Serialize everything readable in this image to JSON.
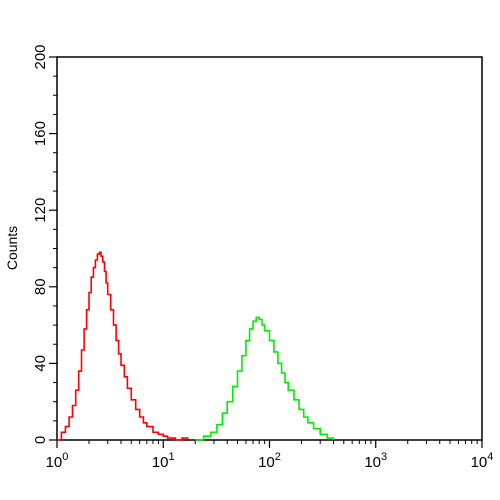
{
  "chart_data": {
    "type": "line",
    "title": "",
    "xlabel": "",
    "ylabel": "Counts",
    "x_scale": "log",
    "xlim": [
      1,
      10000
    ],
    "ylim": [
      0,
      200
    ],
    "grid": false,
    "legend": "none",
    "x_ticks": [
      {
        "value": 1,
        "base": "10",
        "exp": "0"
      },
      {
        "value": 10,
        "base": "10",
        "exp": "1"
      },
      {
        "value": 100,
        "base": "10",
        "exp": "2"
      },
      {
        "value": 1000,
        "base": "10",
        "exp": "3"
      },
      {
        "value": 10000,
        "base": "10",
        "exp": "4"
      }
    ],
    "y_ticks": [
      {
        "value": 0,
        "label": "0"
      },
      {
        "value": 40,
        "label": "40"
      },
      {
        "value": 80,
        "label": "80"
      },
      {
        "value": 120,
        "label": "120"
      },
      {
        "value": 160,
        "label": "160"
      },
      {
        "value": 200,
        "label": "200"
      }
    ],
    "series": [
      {
        "color": "#ff0000",
        "x": [
          1.0,
          1.1,
          1.2,
          1.3,
          1.4,
          1.5,
          1.6,
          1.7,
          1.8,
          1.9,
          2.0,
          2.1,
          2.2,
          2.3,
          2.4,
          2.5,
          2.6,
          2.7,
          2.8,
          2.9,
          3.0,
          3.2,
          3.4,
          3.6,
          3.8,
          4.0,
          4.3,
          4.6,
          5.0,
          5.5,
          6.0,
          6.5,
          7.0,
          8.0,
          9.0,
          10.0,
          11.0,
          12.0,
          13.0,
          15.0,
          17.0
        ],
        "y": [
          0,
          4,
          7,
          12,
          18,
          26,
          36,
          47,
          58,
          68,
          77,
          85,
          90,
          94,
          97,
          98,
          96,
          93,
          88,
          82,
          76,
          68,
          60,
          52,
          45,
          39,
          33,
          27,
          21,
          16,
          12,
          9,
          7,
          4,
          3,
          2,
          1,
          1,
          0,
          1,
          0
        ]
      },
      {
        "color": "#00ee00",
        "x": [
          20,
          24,
          28,
          32,
          36,
          40,
          45,
          50,
          55,
          60,
          65,
          70,
          75,
          80,
          85,
          90,
          100,
          110,
          120,
          130,
          140,
          150,
          170,
          190,
          210,
          230,
          260,
          300,
          350,
          400
        ],
        "y": [
          0,
          2,
          4,
          8,
          14,
          20,
          28,
          36,
          44,
          52,
          58,
          62,
          64,
          63,
          60,
          57,
          52,
          46,
          40,
          35,
          30,
          26,
          21,
          16,
          12,
          9,
          6,
          3,
          1,
          0
        ]
      }
    ]
  }
}
